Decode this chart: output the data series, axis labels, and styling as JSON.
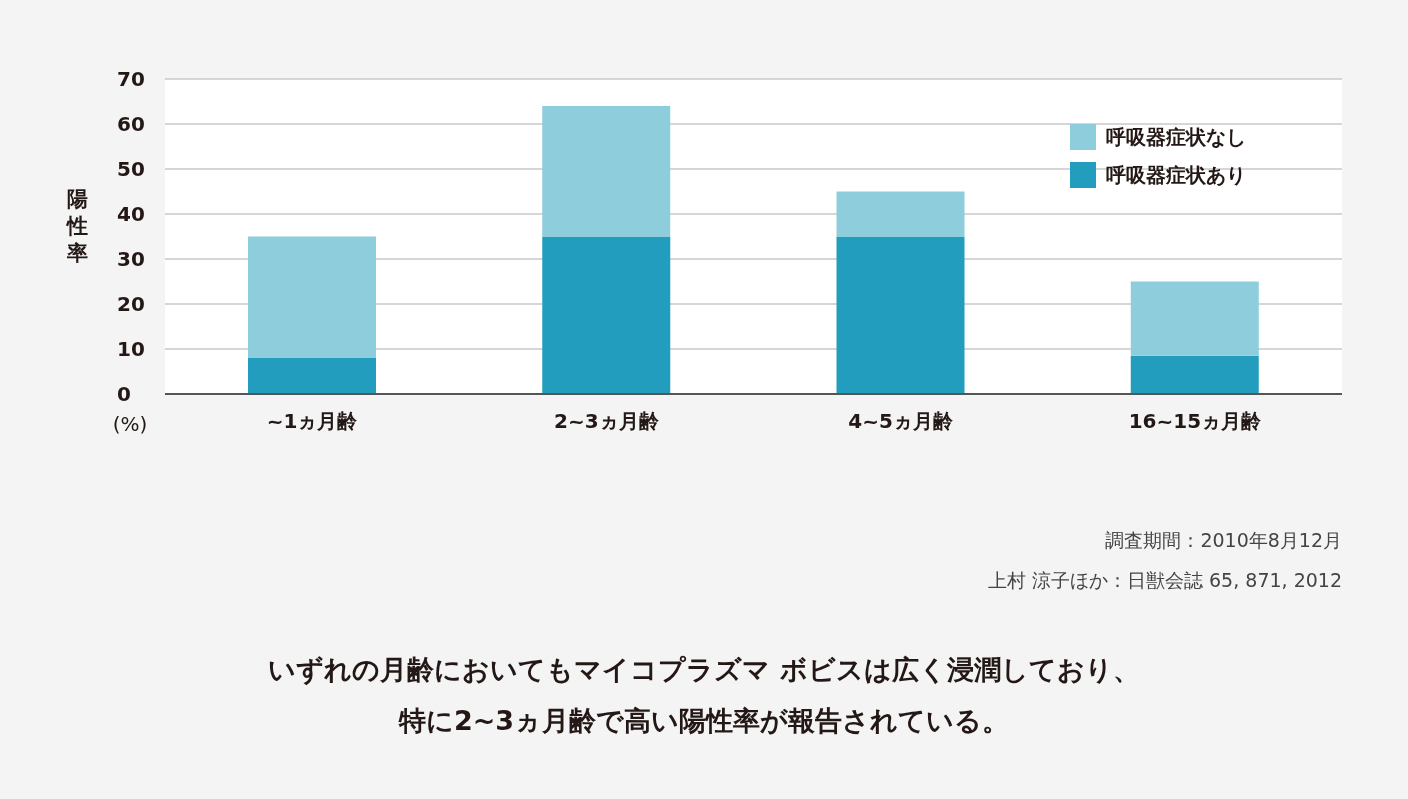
{
  "chart_data": {
    "type": "bar",
    "stacked": true,
    "ylabel": "陽性率",
    "categories": [
      "~1ヵ月齢",
      "2~3ヵ月齢",
      "4~5ヵ月齢",
      "16~15ヵ月齢"
    ],
    "series": [
      {
        "name": "呼吸器症状あり",
        "color": "#229dbd",
        "values": [
          8,
          35,
          35,
          8.5
        ]
      },
      {
        "name": "呼吸器症状なし",
        "color": "#8ecddc",
        "values": [
          27,
          29,
          10,
          16.5
        ]
      }
    ],
    "ylim": [
      0,
      70
    ],
    "yticks": [
      0,
      10,
      20,
      30,
      40,
      50,
      60,
      70
    ],
    "grid": "y",
    "legend": "top right",
    "annotations": [
      "(%)",
      "調査期間：2010年8月12月",
      "上村 涼子ほか：日獣会誌 65, 871, 2012",
      "いずれの月齢においてもマイコプラズマ ボビスは広く浸潤しており、",
      "特に2~3ヵ月齢で高い陽性率が報告されている。"
    ]
  }
}
